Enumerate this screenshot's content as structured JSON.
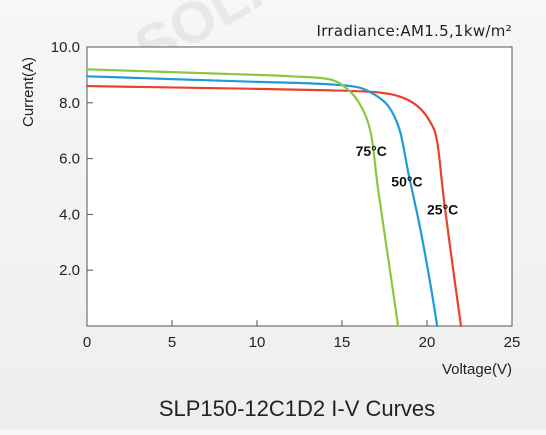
{
  "chart_data": {
    "type": "line",
    "title": "SLP150-12C1D2 I-V Curves",
    "annotation": "Irradiance:AM1.5,1kw/m²",
    "xlabel": "Voltage(V)",
    "ylabel": "Current(A)",
    "xlim": [
      0,
      25
    ],
    "ylim": [
      0,
      10
    ],
    "x_ticks": [
      "0",
      "5",
      "10",
      "15",
      "20",
      "25"
    ],
    "y_ticks": [
      "2.0",
      "4.0",
      "6.0",
      "8.0",
      "10.0"
    ],
    "grid": false,
    "series": [
      {
        "name": "25°C",
        "color": "#e8412c",
        "points": [
          [
            0,
            8.6
          ],
          [
            5,
            8.55
          ],
          [
            10,
            8.5
          ],
          [
            14,
            8.45
          ],
          [
            17,
            8.38
          ],
          [
            18.5,
            8.2
          ],
          [
            19.5,
            7.85
          ],
          [
            20.2,
            7.3
          ],
          [
            20.6,
            6.6
          ],
          [
            21.0,
            4.5
          ],
          [
            21.5,
            2.2
          ],
          [
            22.0,
            0
          ]
        ]
      },
      {
        "name": "50°C",
        "color": "#1e9bd7",
        "points": [
          [
            0,
            8.95
          ],
          [
            5,
            8.85
          ],
          [
            10,
            8.75
          ],
          [
            13,
            8.7
          ],
          [
            15.5,
            8.6
          ],
          [
            16.6,
            8.4
          ],
          [
            17.7,
            7.9
          ],
          [
            18.4,
            7.0
          ],
          [
            18.9,
            5.5
          ],
          [
            19.6,
            3.5
          ],
          [
            20.2,
            1.5
          ],
          [
            20.6,
            0
          ]
        ]
      },
      {
        "name": "75°C",
        "color": "#8cc63f",
        "points": [
          [
            0,
            9.2
          ],
          [
            5,
            9.1
          ],
          [
            10,
            9.0
          ],
          [
            12,
            8.95
          ],
          [
            14.2,
            8.85
          ],
          [
            15.3,
            8.5
          ],
          [
            16.1,
            7.9
          ],
          [
            16.7,
            6.9
          ],
          [
            17.1,
            5.0
          ],
          [
            17.7,
            2.5
          ],
          [
            18.3,
            0
          ]
        ]
      }
    ],
    "series_label_positions_data": [
      {
        "name": "25°C",
        "x": 20.0,
        "y": 4.0
      },
      {
        "name": "50°C",
        "x": 17.9,
        "y": 5.0
      },
      {
        "name": "75°C",
        "x": 15.8,
        "y": 6.1
      }
    ]
  }
}
